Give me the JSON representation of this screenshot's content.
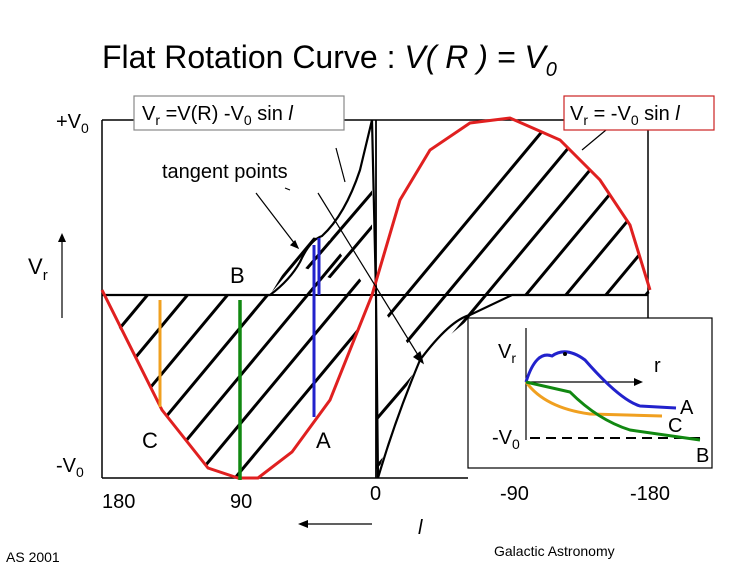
{
  "title": {
    "main": "Flat Rotation Curve : ",
    "formula_v": "V( R ) = V",
    "formula_sub": "0"
  },
  "y_axis": {
    "top_label": "+V",
    "top_sub": "0",
    "bottom_label": "-V",
    "bottom_sub": "0",
    "vr_label": "V",
    "vr_sub": "r"
  },
  "x_axis": {
    "ticks": [
      "180",
      "90",
      "0",
      "-90",
      "-180"
    ],
    "label": "l"
  },
  "callouts": {
    "left_box": {
      "v": "V",
      "r": "r",
      "rest": " =V(R) -V",
      "zero": "0",
      "tail": " sin ",
      "l": "l"
    },
    "right_box": {
      "v": "V",
      "r": "r",
      "rest": " = -V",
      "zero": "0",
      "tail": " sin ",
      "l": "l"
    },
    "tangent_points": "tangent points"
  },
  "point_labels": {
    "A": "A",
    "B": "B",
    "C": "C"
  },
  "inset": {
    "vr_label": "V",
    "vr_sub": "r",
    "r_label": "r",
    "neg_v0": "-V",
    "neg_v0_sub": "0",
    "A": "A",
    "B": "B",
    "C": "C"
  },
  "colors": {
    "sine_curve": "#e02020",
    "tangent_A": "#2222cc",
    "line_B": "#118811",
    "line_C": "#f0a020",
    "callout_border_left": "#888888",
    "callout_border_right": "#cc2222"
  },
  "footer": {
    "left": "AS 2001",
    "right": "Galactic Astronomy"
  }
}
